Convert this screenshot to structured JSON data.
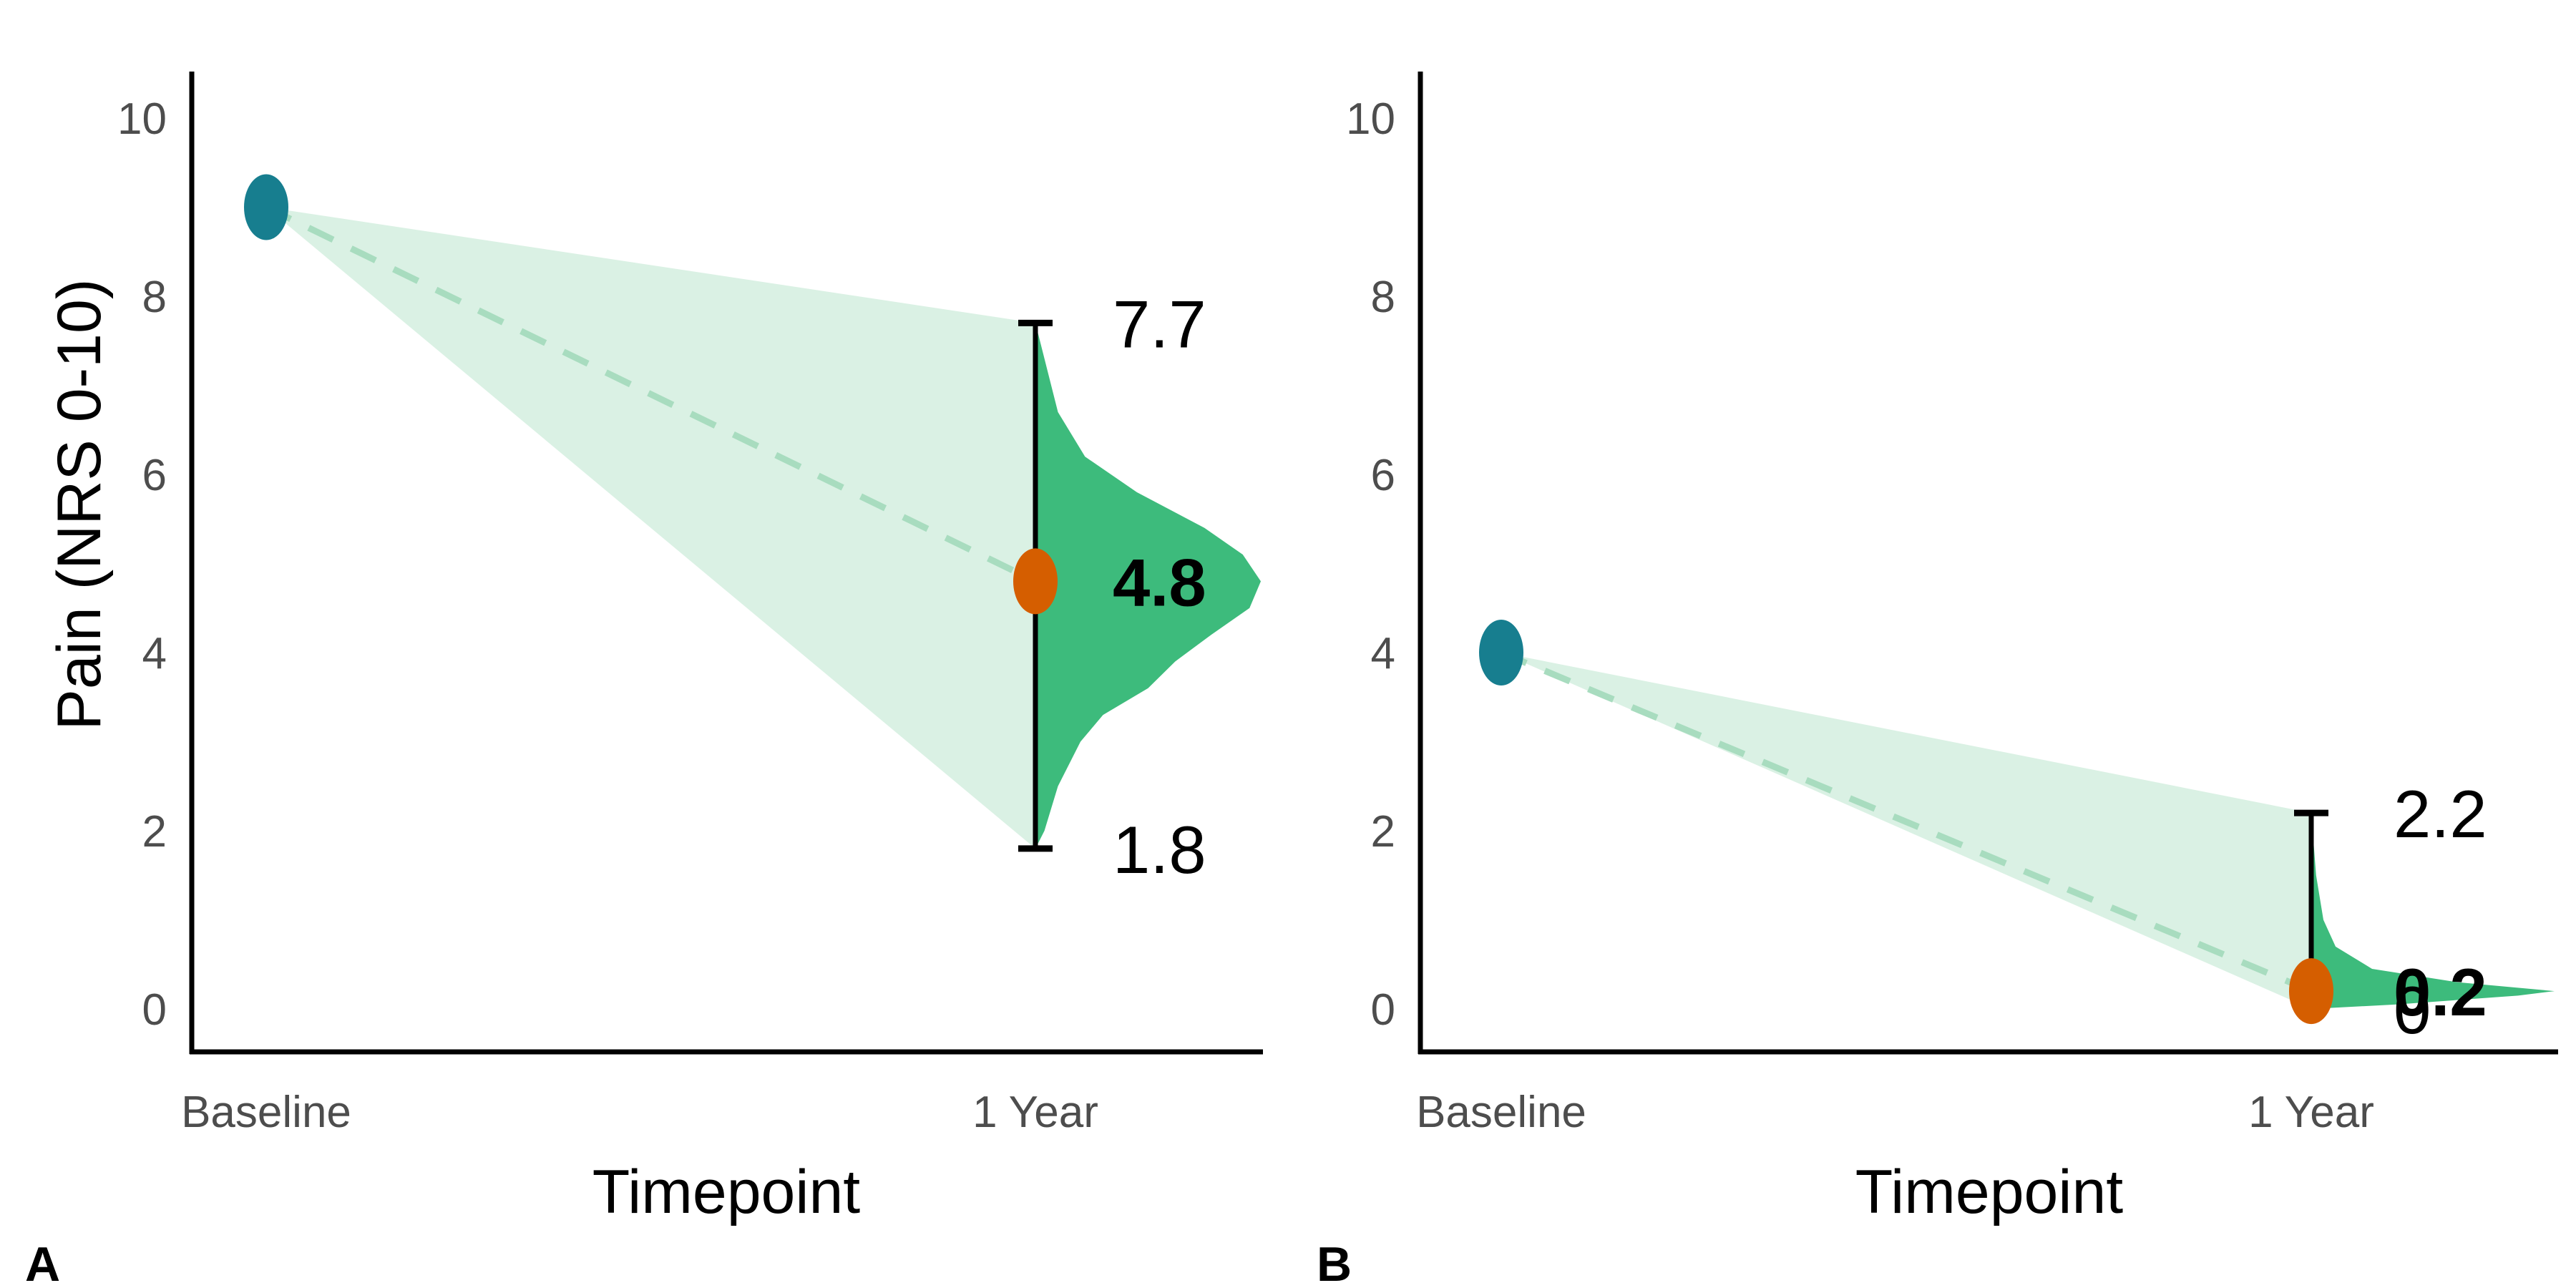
{
  "colors": {
    "baseline_point": "#177e8f",
    "followup_point": "#d55e00",
    "violin_fill": "#3dbb7c",
    "cone_fill": "#d8f0e3",
    "dashed_line": "#a8dcbf",
    "axis": "#000000",
    "tick_text": "#4d4d4d"
  },
  "ylabel": "Pain (NRS 0-10)",
  "chart_data": [
    {
      "type": "violin",
      "panel_label": "A",
      "categories": [
        "Baseline",
        "1 Year"
      ],
      "xlabel": "Timepoint",
      "ylim": [
        0,
        10
      ],
      "yticks": [
        "0",
        "2",
        "4",
        "6",
        "8",
        "10"
      ],
      "baseline_mean": 9.0,
      "followup_mean": 4.8,
      "followup_lower": 1.8,
      "followup_upper": 7.7,
      "labels": {
        "mean": "4.8",
        "lower": "1.8",
        "upper": "7.7"
      },
      "density": [
        [
          1.8,
          0.0
        ],
        [
          2.0,
          0.04
        ],
        [
          2.5,
          0.1
        ],
        [
          3.0,
          0.2
        ],
        [
          3.3,
          0.3
        ],
        [
          3.6,
          0.5
        ],
        [
          3.9,
          0.62
        ],
        [
          4.2,
          0.78
        ],
        [
          4.5,
          0.95
        ],
        [
          4.8,
          1.0
        ],
        [
          5.1,
          0.92
        ],
        [
          5.4,
          0.75
        ],
        [
          5.8,
          0.45
        ],
        [
          6.2,
          0.22
        ],
        [
          6.7,
          0.1
        ],
        [
          7.2,
          0.05
        ],
        [
          7.7,
          0.0
        ]
      ]
    },
    {
      "type": "violin",
      "panel_label": "B",
      "categories": [
        "Baseline",
        "1 Year"
      ],
      "xlabel": "Timepoint",
      "ylim": [
        0,
        10
      ],
      "yticks": [
        "0",
        "2",
        "4",
        "6",
        "8",
        "10"
      ],
      "baseline_mean": 4.0,
      "followup_mean": 0.2,
      "followup_lower": 0.0,
      "followup_upper": 2.2,
      "labels": {
        "mean": "0.2",
        "lower": "0",
        "upper": "2.2"
      },
      "density": [
        [
          0.0,
          0.0
        ],
        [
          0.05,
          0.35
        ],
        [
          0.15,
          0.85
        ],
        [
          0.2,
          1.0
        ],
        [
          0.3,
          0.6
        ],
        [
          0.45,
          0.25
        ],
        [
          0.7,
          0.1
        ],
        [
          1.0,
          0.05
        ],
        [
          1.5,
          0.02
        ],
        [
          2.2,
          0.0
        ]
      ]
    }
  ]
}
